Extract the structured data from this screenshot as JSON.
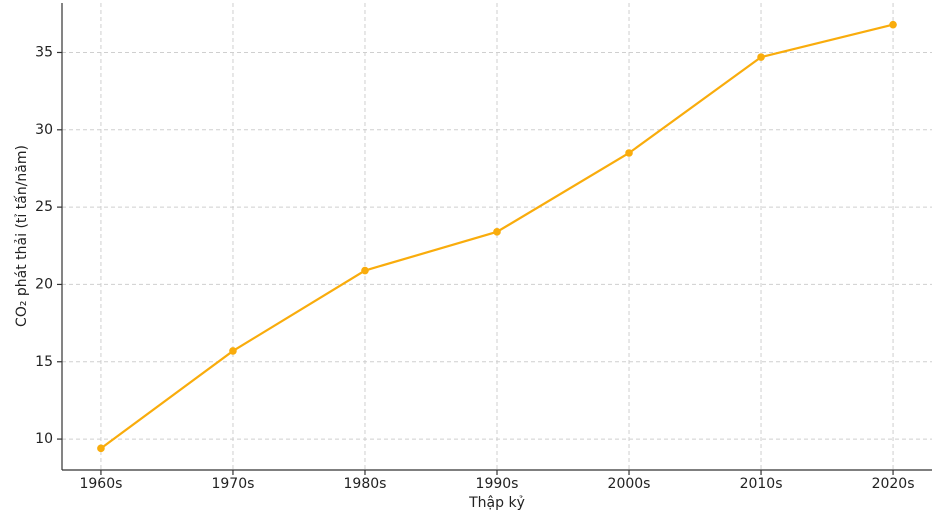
{
  "chart_data": {
    "type": "line",
    "x_label": "Thập kỷ",
    "y_label": "CO₂ phát thải (tỉ tấn/năm)",
    "categories": [
      "1960s",
      "1970s",
      "1980s",
      "1990s",
      "2000s",
      "2010s",
      "2020s"
    ],
    "series": [
      {
        "name": "CO₂",
        "color": "#f9ac0c",
        "values": [
          9.4,
          15.7,
          20.9,
          23.4,
          28.5,
          34.7,
          36.8
        ]
      }
    ],
    "ylim": [
      8,
      38.2
    ],
    "yticks": [
      10,
      15,
      20,
      25,
      30,
      35
    ],
    "grid": true
  }
}
